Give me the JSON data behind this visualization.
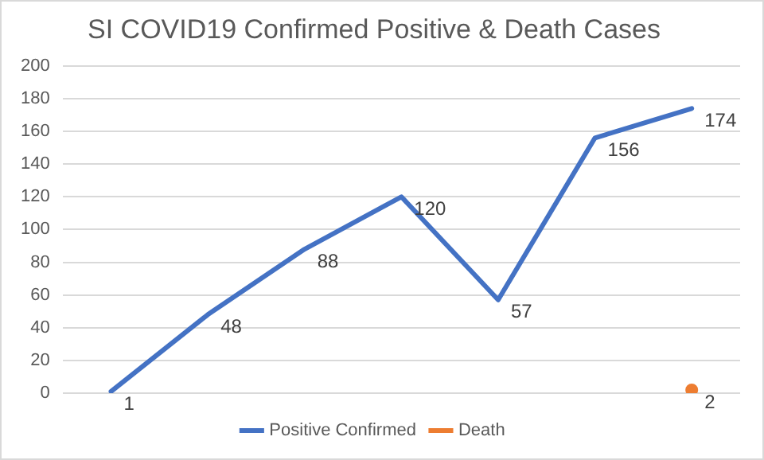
{
  "chart_data": {
    "type": "line",
    "title": "SI COVID19 Confirmed Positive & Death Cases",
    "categories": [
      null,
      null,
      null,
      null,
      null,
      null,
      null
    ],
    "series": [
      {
        "name": "Positive Confirmed",
        "color": "#4472c4",
        "values": [
          1,
          48,
          88,
          120,
          57,
          156,
          174
        ]
      },
      {
        "name": "Death",
        "color": "#ed7d31",
        "marker": "circle",
        "values": [
          null,
          null,
          null,
          null,
          null,
          null,
          2
        ]
      }
    ],
    "ylim": [
      0,
      200
    ],
    "yticks": [
      0,
      20,
      40,
      60,
      80,
      100,
      120,
      140,
      160,
      180,
      200
    ],
    "grid": "y",
    "legend": "bottom",
    "tick_labels": "y",
    "data_labels": true,
    "marker": "none",
    "line_style": "solid"
  }
}
